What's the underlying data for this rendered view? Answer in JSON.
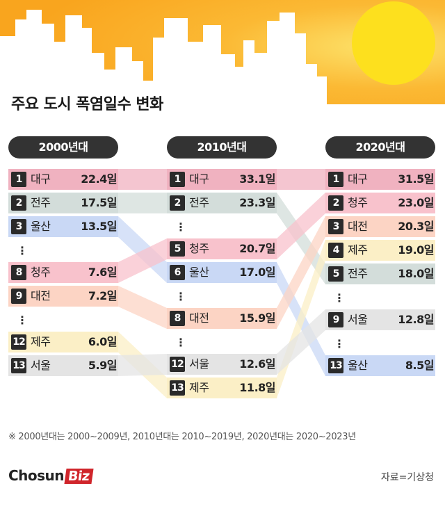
{
  "title": "주요 도시 폭염일수 변화",
  "columns": [
    {
      "label": "2000년대",
      "rows": [
        {
          "kind": "row",
          "rank": "1",
          "city": "대구",
          "value": "22.4일"
        },
        {
          "kind": "row",
          "rank": "2",
          "city": "전주",
          "value": "17.5일"
        },
        {
          "kind": "row",
          "rank": "3",
          "city": "울산",
          "value": "13.5일"
        },
        {
          "kind": "gap"
        },
        {
          "kind": "row",
          "rank": "8",
          "city": "청주",
          "value": "7.6일"
        },
        {
          "kind": "row",
          "rank": "9",
          "city": "대전",
          "value": "7.2일"
        },
        {
          "kind": "gap"
        },
        {
          "kind": "row",
          "rank": "12",
          "city": "제주",
          "value": "6.0일"
        },
        {
          "kind": "row",
          "rank": "13",
          "city": "서울",
          "value": "5.9일"
        }
      ]
    },
    {
      "label": "2010년대",
      "rows": [
        {
          "kind": "row",
          "rank": "1",
          "city": "대구",
          "value": "33.1일"
        },
        {
          "kind": "row",
          "rank": "2",
          "city": "전주",
          "value": "23.3일"
        },
        {
          "kind": "gap"
        },
        {
          "kind": "row",
          "rank": "5",
          "city": "청주",
          "value": "20.7일"
        },
        {
          "kind": "row",
          "rank": "6",
          "city": "울산",
          "value": "17.0일"
        },
        {
          "kind": "gap"
        },
        {
          "kind": "row",
          "rank": "8",
          "city": "대전",
          "value": "15.9일"
        },
        {
          "kind": "gap"
        },
        {
          "kind": "row",
          "rank": "12",
          "city": "서울",
          "value": "12.6일"
        },
        {
          "kind": "row",
          "rank": "13",
          "city": "제주",
          "value": "11.8일"
        }
      ]
    },
    {
      "label": "2020년대",
      "rows": [
        {
          "kind": "row",
          "rank": "1",
          "city": "대구",
          "value": "31.5일"
        },
        {
          "kind": "row",
          "rank": "2",
          "city": "청주",
          "value": "23.0일"
        },
        {
          "kind": "row",
          "rank": "3",
          "city": "대전",
          "value": "20.3일"
        },
        {
          "kind": "row",
          "rank": "4",
          "city": "제주",
          "value": "19.0일"
        },
        {
          "kind": "row",
          "rank": "5",
          "city": "전주",
          "value": "18.0일"
        },
        {
          "kind": "gap"
        },
        {
          "kind": "row",
          "rank": "9",
          "city": "서울",
          "value": "12.8일"
        },
        {
          "kind": "gap"
        },
        {
          "kind": "row",
          "rank": "13",
          "city": "울산",
          "value": "8.5일"
        }
      ]
    }
  ],
  "city_colors": {
    "대구": "#f0b2c0",
    "전주": "#d3ddda",
    "울산": "#c9d8f5",
    "청주": "#f8c2cc",
    "대전": "#fcd4c4",
    "제주": "#fbefc6",
    "서울": "#e4e4e4"
  },
  "chart_data": {
    "type": "table",
    "title": "주요 도시 폭염일수 변화",
    "unit": "일",
    "periods": [
      "2000년대",
      "2010년대",
      "2020년대"
    ],
    "series": [
      {
        "name": "대구",
        "values": [
          22.4,
          33.1,
          31.5
        ],
        "ranks": [
          1,
          1,
          1
        ]
      },
      {
        "name": "전주",
        "values": [
          17.5,
          23.3,
          18.0
        ],
        "ranks": [
          2,
          2,
          5
        ]
      },
      {
        "name": "울산",
        "values": [
          13.5,
          17.0,
          8.5
        ],
        "ranks": [
          3,
          6,
          13
        ]
      },
      {
        "name": "청주",
        "values": [
          7.6,
          20.7,
          23.0
        ],
        "ranks": [
          8,
          5,
          2
        ]
      },
      {
        "name": "대전",
        "values": [
          7.2,
          15.9,
          20.3
        ],
        "ranks": [
          9,
          8,
          3
        ]
      },
      {
        "name": "제주",
        "values": [
          6.0,
          11.8,
          19.0
        ],
        "ranks": [
          12,
          13,
          4
        ]
      },
      {
        "name": "서울",
        "values": [
          5.9,
          12.6,
          12.8
        ],
        "ranks": [
          13,
          12,
          9
        ]
      }
    ]
  },
  "note": "※ 2000년대는 2000~2009년, 2010년대는 2010~2019년, 2020년대는 2020~2023년",
  "logo": {
    "part1": "Chosun",
    "part2": "Biz"
  },
  "source": "자료=기상청",
  "colors": {
    "header_sky": "#fca91a",
    "sun": "#fde01e",
    "pill": "#333333",
    "rank_box": "#2a2a2a",
    "logo_red": "#d0252b"
  }
}
